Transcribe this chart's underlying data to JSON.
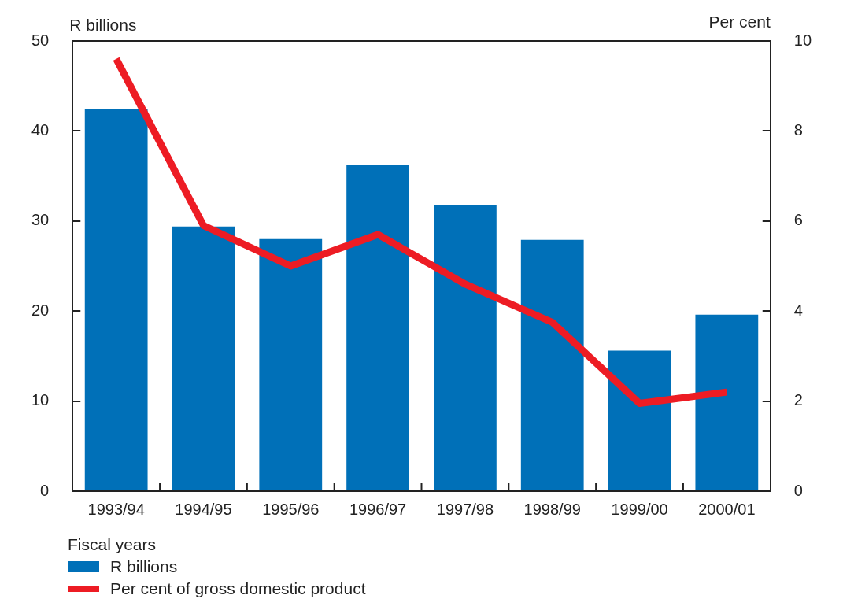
{
  "chart_data": {
    "type": "bar",
    "xlabel": "Fiscal years",
    "ylabel": "R billions",
    "y2label": "Per cent",
    "categories": [
      "1993/94",
      "1994/95",
      "1995/96",
      "1996/97",
      "1997/98",
      "1998/99",
      "1999/00",
      "2000/01"
    ],
    "series": [
      {
        "name": "R billions",
        "color": "#0070b8",
        "values": [
          42.4,
          29.4,
          28.0,
          36.2,
          31.8,
          27.9,
          15.6,
          19.6
        ]
      },
      {
        "name": "Per cent of gross domestic product",
        "type": "line",
        "axis": "y2",
        "color": "#ed1c24",
        "values": [
          9.6,
          5.9,
          5.0,
          5.7,
          4.6,
          3.75,
          1.95,
          2.2
        ]
      }
    ],
    "ylim": [
      0,
      50
    ],
    "yticks": [
      0,
      10,
      20,
      30,
      40,
      50
    ],
    "y2lim": [
      0,
      10
    ],
    "y2ticks": [
      0,
      2,
      4,
      6,
      8,
      10
    ],
    "grid": false,
    "legend": "bottom left",
    "marker": "none",
    "line_style": "solid"
  }
}
